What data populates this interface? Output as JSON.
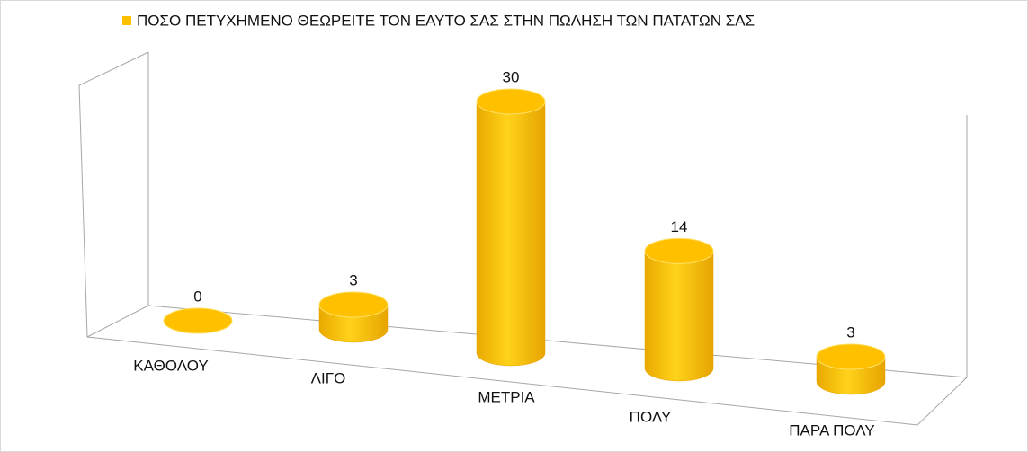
{
  "chart_data": {
    "type": "bar3d",
    "categories": [
      "ΚΑΘΟΛΟΥ",
      "ΛΙΓΟ",
      "ΜΕΤΡΙΑ",
      "ΠΟΛΥ",
      "ΠΑΡΑ ΠΟΛΥ"
    ],
    "series": [
      {
        "name": "ΠΟΣΟ ΠΕΤΥΧΗΜΕΝΟ ΘΕΩΡΕΙΤΕ ΤΟΝ ΕΑΥΤΟ ΣΑΣ ΣΤΗΝ ΠΩΛΗΣΗ ΤΩΝ ΠΑΤΑΤΩΝ ΣΑΣ",
        "color": "#ffc000",
        "values": [
          0,
          3,
          30,
          14,
          3
        ]
      }
    ],
    "legend": "top"
  }
}
